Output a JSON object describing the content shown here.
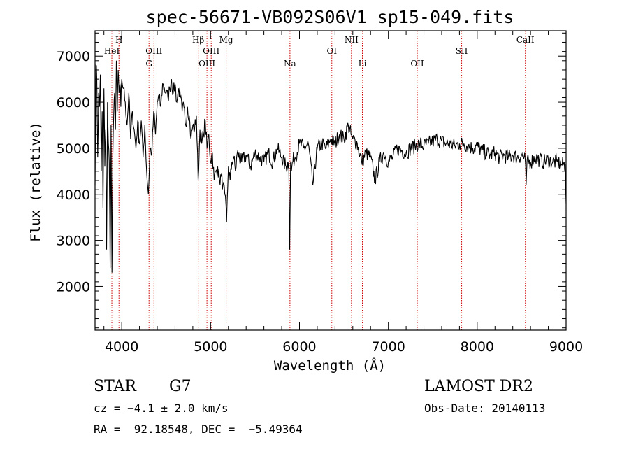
{
  "chart_data": {
    "type": "line",
    "title": "spec-56671-VB092S06V1_sp15-049.fits",
    "xlabel": "Wavelength (Å)",
    "ylabel": "Flux (relative)",
    "xlim": [
      3700,
      9000
    ],
    "ylim": [
      1050,
      7550
    ],
    "xticks": [
      4000,
      5000,
      6000,
      7000,
      8000,
      9000
    ],
    "yticks": [
      2000,
      3000,
      4000,
      5000,
      6000,
      7000
    ],
    "line_color": "#000000",
    "marker_color": "#cc0000",
    "series": [
      {
        "x": [
          3700,
          3710,
          3720,
          3730,
          3740,
          3750,
          3760,
          3770,
          3780,
          3790,
          3800,
          3810,
          3820,
          3830,
          3840,
          3850,
          3860,
          3870,
          3880,
          3890,
          3900,
          3910,
          3920,
          3930,
          3940,
          3950,
          3960,
          3970,
          3980,
          3990,
          4000,
          4020,
          4040,
          4060,
          4080,
          4100,
          4120,
          4140,
          4160,
          4180,
          4200,
          4220,
          4240,
          4260,
          4280,
          4300,
          4320,
          4340,
          4360,
          4380,
          4400,
          4420,
          4440,
          4460,
          4480,
          4500,
          4520,
          4540,
          4560,
          4580,
          4600,
          4620,
          4640,
          4660,
          4680,
          4700,
          4720,
          4740,
          4760,
          4780,
          4800,
          4820,
          4840,
          4860,
          4880,
          4900,
          4920,
          4940,
          4960,
          4980,
          5000,
          5020,
          5040,
          5060,
          5080,
          5100,
          5120,
          5140,
          5160,
          5180,
          5200,
          5220,
          5240,
          5260,
          5280,
          5300,
          5350,
          5400,
          5450,
          5500,
          5550,
          5600,
          5650,
          5700,
          5750,
          5800,
          5850,
          5880,
          5890,
          5900,
          5910,
          5920,
          5950,
          6000,
          6050,
          6100,
          6150,
          6200,
          6250,
          6300,
          6350,
          6400,
          6450,
          6500,
          6550,
          6580,
          6600,
          6650,
          6700,
          6750,
          6800,
          6850,
          6900,
          6950,
          7000,
          7050,
          7100,
          7150,
          7200,
          7250,
          7300,
          7350,
          7400,
          7450,
          7500,
          7550,
          7600,
          7650,
          7700,
          7750,
          7800,
          7850,
          7900,
          7950,
          8000,
          8050,
          8100,
          8150,
          8200,
          8250,
          8300,
          8350,
          8400,
          8450,
          8500,
          8540,
          8550,
          8560,
          8600,
          8650,
          8700,
          8750,
          8800,
          8850,
          8900,
          8950,
          8990,
          9000
        ],
        "y": [
          4200,
          6800,
          6500,
          4800,
          6200,
          5900,
          6600,
          4500,
          5800,
          3700,
          6300,
          4600,
          5400,
          2800,
          6000,
          5100,
          4700,
          2400,
          5500,
          2300,
          4800,
          5700,
          6200,
          5400,
          6900,
          5800,
          6700,
          6200,
          6400,
          5900,
          6500,
          6300,
          6000,
          5500,
          6200,
          5200,
          5800,
          5400,
          5000,
          5600,
          5100,
          5600,
          4800,
          5500,
          4500,
          4000,
          5000,
          4900,
          5800,
          5300,
          6000,
          6100,
          5900,
          6400,
          6300,
          6200,
          6100,
          6300,
          6500,
          6200,
          6400,
          6000,
          6300,
          6100,
          5800,
          5900,
          5500,
          5900,
          5700,
          5200,
          5500,
          5400,
          5700,
          4300,
          5400,
          5100,
          5300,
          5600,
          5000,
          5300,
          4700,
          4900,
          4300,
          4500,
          4600,
          4300,
          4400,
          4200,
          4000,
          3400,
          4600,
          4300,
          4700,
          4800,
          4500,
          4900,
          4700,
          4850,
          4600,
          4900,
          4800,
          4700,
          4900,
          4700,
          5000,
          4800,
          4600,
          4700,
          2800,
          4700,
          4500,
          4700,
          4800,
          5100,
          5000,
          5100,
          4200,
          5000,
          5100,
          5000,
          5200,
          5100,
          5300,
          5200,
          5500,
          5300,
          5200,
          5100,
          4700,
          4900,
          4800,
          4300,
          4700,
          4900,
          4700,
          4800,
          5000,
          4950,
          4900,
          5000,
          5050,
          5100,
          5050,
          5100,
          5150,
          5200,
          5150,
          5100,
          5100,
          5050,
          5100,
          5100,
          5050,
          5000,
          5050,
          4950,
          4900,
          4850,
          4900,
          4800,
          4850,
          4800,
          4850,
          4800,
          4850,
          4750,
          4200,
          4700,
          4700,
          4800,
          4750,
          4700,
          4750,
          4700,
          4700,
          4650,
          4650,
          3800
        ],
        "noise": 170
      }
    ],
    "spectral_lines": [
      {
        "name": "HeI",
        "wavelength": 3889,
        "row": 1
      },
      {
        "name": "H",
        "wavelength": 3969,
        "row": 0
      },
      {
        "name": "OIII",
        "wavelength": 4363,
        "row": 1
      },
      {
        "name": "G",
        "wavelength": 4307,
        "row": 2
      },
      {
        "name": "Hβ",
        "wavelength": 4861,
        "row": 0
      },
      {
        "name": "OIII",
        "wavelength": 4959,
        "row": 2
      },
      {
        "name": "OIII",
        "wavelength": 5007,
        "row": 1
      },
      {
        "name": "Mg",
        "wavelength": 5175,
        "row": 0
      },
      {
        "name": "Na",
        "wavelength": 5893,
        "row": 2
      },
      {
        "name": "OI",
        "wavelength": 6364,
        "row": 1
      },
      {
        "name": "NII",
        "wavelength": 6585,
        "row": 0
      },
      {
        "name": "Li",
        "wavelength": 6708,
        "row": 2
      },
      {
        "name": "OII",
        "wavelength": 7325,
        "row": 2
      },
      {
        "name": "SII",
        "wavelength": 7825,
        "row": 1
      },
      {
        "name": "CaII",
        "wavelength": 8542,
        "row": 0
      }
    ]
  },
  "info": {
    "object_type": "STAR",
    "subclass": "G7",
    "redshift": "cz = −4.1 ± 2.0 km/s",
    "coords": "RA =  92.18548, DEC =  −5.49364",
    "survey": "LAMOST DR2",
    "obs_date": "Obs-Date: 20140113"
  }
}
